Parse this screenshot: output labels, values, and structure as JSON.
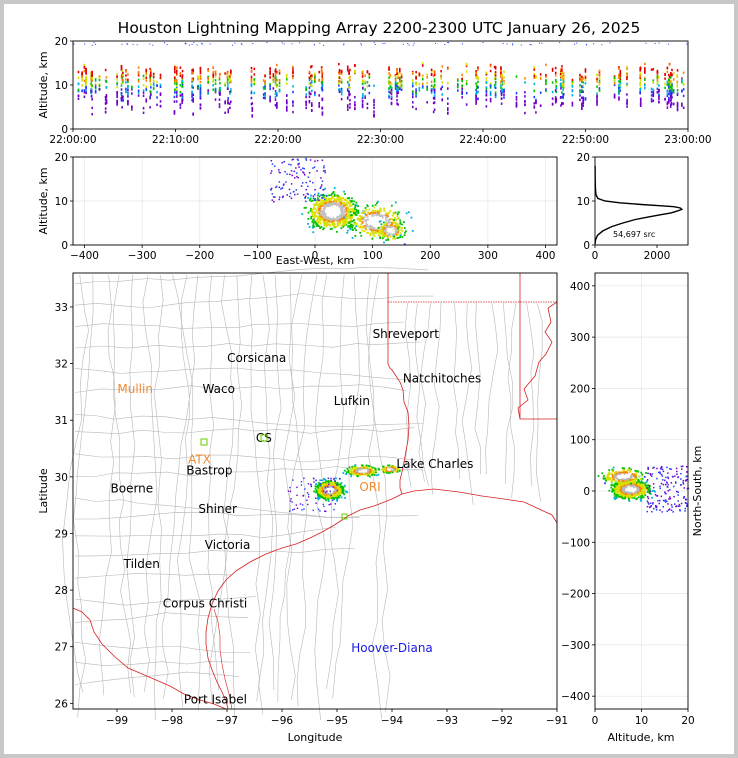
{
  "title": "Houston Lightning Mapping Array 2200-2300 UTC January 26, 2025",
  "colors": {
    "state_border": "#d62020",
    "county_border": "#b4b4b4",
    "station_orange": "#f08a30",
    "station_green": "#66cc00",
    "label_blue": "#1a1ae6"
  },
  "chart_data": [
    {
      "id": "time_altitude",
      "type": "scatter",
      "subtype": "density",
      "ylabel": "Altitude, km",
      "ylim": [
        0,
        20
      ],
      "yticks": [
        "0",
        "10",
        "20"
      ],
      "xlim": [
        "22:00:00",
        "23:00:00"
      ],
      "xticks": [
        "22:00:00",
        "22:10:00",
        "22:20:00",
        "22:30:00",
        "22:40:00",
        "22:50:00",
        "23:00:00"
      ]
    },
    {
      "id": "ew_altitude",
      "type": "scatter",
      "subtype": "density",
      "xlabel": "East-West, km",
      "ylabel": "Altitude, km",
      "xlim": [
        -420,
        420
      ],
      "ylim": [
        0,
        20
      ],
      "xticks": [
        "−400",
        "−300",
        "−200",
        "−100",
        "0",
        "100",
        "200",
        "300",
        "400"
      ],
      "yticks": [
        "0",
        "10",
        "20"
      ],
      "grid": true
    },
    {
      "id": "altitude_histogram",
      "type": "line",
      "xlim": [
        0,
        3000
      ],
      "ylim": [
        0,
        20
      ],
      "xticks": [
        "0",
        "2000"
      ],
      "yticks": [
        "0",
        "10",
        "20"
      ],
      "annotation": "54,697 src",
      "x": [
        0,
        6,
        20,
        80,
        250,
        550,
        900,
        1300,
        1750,
        2150,
        2450,
        2650,
        2800,
        2750,
        2550,
        2150,
        1500,
        800,
        320,
        90,
        30,
        12,
        5,
        2
      ],
      "y": [
        0.2,
        0.6,
        1.2,
        2.2,
        3.2,
        4.2,
        5.0,
        5.8,
        6.4,
        6.9,
        7.3,
        7.7,
        8.1,
        8.4,
        8.7,
        8.9,
        9.2,
        9.6,
        10.0,
        10.6,
        11.5,
        13.0,
        15.0,
        18.0
      ]
    },
    {
      "id": "plan_view",
      "type": "scatter",
      "subtype": "density",
      "xlabel": "Longitude",
      "ylabel": "Latitude",
      "xlim": [
        -99.8,
        -91.0
      ],
      "ylim": [
        25.9,
        33.6
      ],
      "xticks": [
        {
          "value": -99,
          "label": "−99"
        },
        {
          "value": -98,
          "label": "−98"
        },
        {
          "value": -97,
          "label": "−97"
        },
        {
          "value": -96,
          "label": "−96"
        },
        {
          "value": -95,
          "label": "−95"
        },
        {
          "value": -94,
          "label": "−94"
        },
        {
          "value": -93,
          "label": "−93"
        },
        {
          "value": -92,
          "label": "−92"
        },
        {
          "value": -91,
          "label": "−91"
        }
      ],
      "yticks": [
        {
          "value": 26,
          "label": "26"
        },
        {
          "value": 27,
          "label": "27"
        },
        {
          "value": 28,
          "label": "28"
        },
        {
          "value": 29,
          "label": "29"
        },
        {
          "value": 30,
          "label": "30"
        },
        {
          "value": 31,
          "label": "31"
        },
        {
          "value": 32,
          "label": "32"
        },
        {
          "value": 33,
          "label": "33"
        }
      ],
      "cities": [
        {
          "name": "Shreveport",
          "lon": -93.75,
          "lat": 32.52
        },
        {
          "name": "Corsicana",
          "lon": -96.46,
          "lat": 32.1
        },
        {
          "name": "Natchitoches",
          "lon": -93.09,
          "lat": 31.74
        },
        {
          "name": "Waco",
          "lon": -97.15,
          "lat": 31.55
        },
        {
          "name": "Lufkin",
          "lon": -94.73,
          "lat": 31.34
        },
        {
          "name": "CS",
          "lon": -96.33,
          "lat": 30.69
        },
        {
          "name": "Lake Charles",
          "lon": -93.22,
          "lat": 30.23
        },
        {
          "name": "Bastrop",
          "lon": -97.32,
          "lat": 30.11
        },
        {
          "name": "Boerne",
          "lon": -98.73,
          "lat": 29.79
        },
        {
          "name": "Shiner",
          "lon": -97.17,
          "lat": 29.43
        },
        {
          "name": "Victoria",
          "lon": -96.99,
          "lat": 28.8
        },
        {
          "name": "Tilden",
          "lon": -98.55,
          "lat": 28.46
        },
        {
          "name": "Corpus Christi",
          "lon": -97.4,
          "lat": 27.76
        },
        {
          "name": "Port Isabel",
          "lon": -97.21,
          "lat": 26.07
        }
      ],
      "stations": [
        {
          "name": "Mullin",
          "lon": -98.67,
          "lat": 31.55
        },
        {
          "name": "ATX",
          "lon": -97.5,
          "lat": 30.31
        },
        {
          "name": "ORI",
          "lon": -94.4,
          "lat": 29.82
        }
      ],
      "blue_labels": [
        {
          "name": "Hoover-Diana",
          "lon": -94.0,
          "lat": 26.98
        }
      ]
    },
    {
      "id": "ns_altitude",
      "type": "scatter",
      "subtype": "density",
      "xlabel": "Altitude, km",
      "ylabel": "North-South, km",
      "xlim": [
        0,
        20
      ],
      "ylim": [
        -425,
        425
      ],
      "xticks": [
        "0",
        "10",
        "20"
      ],
      "yticks": [
        "−400",
        "−300",
        "−200",
        "−100",
        "0",
        "100",
        "200",
        "300",
        "400"
      ],
      "grid": true
    }
  ]
}
